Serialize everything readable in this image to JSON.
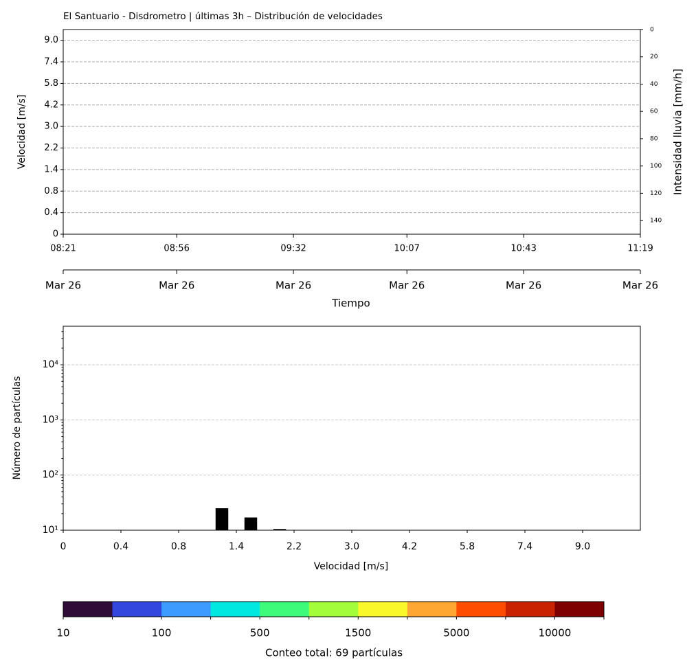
{
  "chart_data": [
    {
      "type": "heatmap",
      "title": "El Santuario - Disdrometro | últimas 3h – Distribución de velocidades",
      "ylabel": "Velocidad [m/s]",
      "y2label": "Intensidad lluvia [mm/h]",
      "xlabel": "Tiempo",
      "xlim": [
        "08:21",
        "11:19"
      ],
      "xticks": [
        "08:21",
        "08:56",
        "09:32",
        "10:07",
        "10:43",
        "11:19"
      ],
      "xtick_dates": [
        "Mar 26",
        "Mar 26",
        "Mar 26",
        "Mar 26",
        "Mar 26",
        "Mar 26"
      ],
      "ylim": [
        0,
        9.5
      ],
      "yticks": [
        {
          "value": 0,
          "label": "0"
        },
        {
          "value": 1,
          "label": "0.4"
        },
        {
          "value": 2,
          "label": "0.8"
        },
        {
          "value": 3,
          "label": "1.4"
        },
        {
          "value": 4,
          "label": "2.2"
        },
        {
          "value": 5,
          "label": "3.0"
        },
        {
          "value": 6,
          "label": "4.2"
        },
        {
          "value": 7,
          "label": "5.8"
        },
        {
          "value": 8,
          "label": "7.4"
        },
        {
          "value": 9,
          "label": "9.0"
        }
      ],
      "y2lim": [
        0,
        150
      ],
      "y2_inverted": true,
      "y2ticks": [
        0,
        20,
        40,
        60,
        80,
        100,
        120,
        140
      ],
      "grid": true
    },
    {
      "type": "bar",
      "xlabel": "Velocidad [m/s]",
      "ylabel": "Número de partículas",
      "xlim": [
        0,
        10
      ],
      "xticks": [
        {
          "value": 0,
          "label": "0"
        },
        {
          "value": 1,
          "label": "0.4"
        },
        {
          "value": 2,
          "label": "0.8"
        },
        {
          "value": 3,
          "label": "1.4"
        },
        {
          "value": 4,
          "label": "2.2"
        },
        {
          "value": 5,
          "label": "3.0"
        },
        {
          "value": 6,
          "label": "4.2"
        },
        {
          "value": 7,
          "label": "5.8"
        },
        {
          "value": 8,
          "label": "7.4"
        },
        {
          "value": 9,
          "label": "9.0"
        }
      ],
      "ylog": true,
      "ylim": [
        10,
        50000
      ],
      "yticks": [
        {
          "value": 10,
          "label": "10¹"
        },
        {
          "value": 100,
          "label": "10²"
        },
        {
          "value": 1000,
          "label": "10³"
        },
        {
          "value": 10000,
          "label": "10⁴"
        }
      ],
      "x": [
        2.75,
        3.25,
        3.75
      ],
      "values": [
        25,
        17,
        10.5
      ],
      "color": "#000000",
      "grid": true,
      "colorbar": {
        "colors": [
          "#2f0d38",
          "#3346dd",
          "#3d9bff",
          "#00e8e0",
          "#3efc7a",
          "#a3fd3a",
          "#f8f82a",
          "#ffa733",
          "#ff4d00",
          "#c92200",
          "#7f0000"
        ],
        "ticks": [
          10,
          100,
          500,
          1500,
          5000,
          10000
        ],
        "label": "Conteo total: 69 partículas"
      }
    }
  ]
}
